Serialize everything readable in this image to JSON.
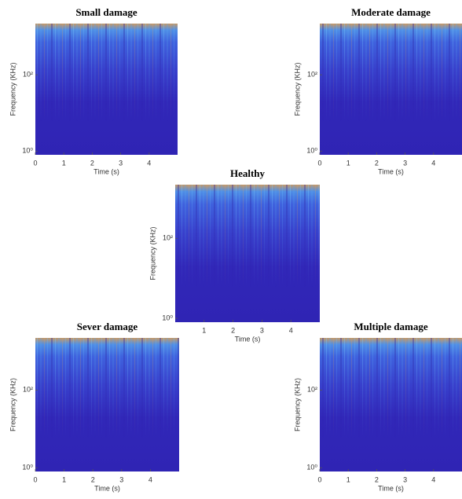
{
  "chart_data": [
    {
      "type": "heatmap",
      "title": "Small damage",
      "xlabel": "Time (s)",
      "ylabel": "Frequency (KHz)",
      "xlim": [
        0,
        5
      ],
      "xticks": [
        0,
        1,
        2,
        3,
        4
      ],
      "ylim": [
        0.8,
        2200
      ],
      "log_y": true,
      "yticks": [
        {
          "value": 1,
          "label": "10⁰"
        },
        {
          "value": 100,
          "label": "10²"
        }
      ]
    },
    {
      "type": "heatmap",
      "title": "Moderate damage",
      "xlabel": "Time (s)",
      "ylabel": "Frequency (KHz)",
      "xlim": [
        0,
        5
      ],
      "xticks": [
        0,
        1,
        2,
        3,
        4
      ],
      "ylim": [
        0.8,
        2200
      ],
      "log_y": true,
      "yticks": [
        {
          "value": 1,
          "label": "10⁰"
        },
        {
          "value": 100,
          "label": "10²"
        }
      ]
    },
    {
      "type": "heatmap",
      "title": "Healthy",
      "xlabel": "Time (s)",
      "ylabel": "Frequency (KHz)",
      "xlim": [
        0,
        5
      ],
      "xticks": [
        1,
        2,
        3,
        4
      ],
      "ylim": [
        0.8,
        2200
      ],
      "log_y": true,
      "yticks": [
        {
          "value": 1,
          "label": "10⁰"
        },
        {
          "value": 100,
          "label": "10²"
        }
      ]
    },
    {
      "type": "heatmap",
      "title": "Sever damage",
      "xlabel": "Time (s)",
      "ylabel": "Frequency (KHz)",
      "xlim": [
        0,
        5
      ],
      "xticks": [
        0,
        1,
        2,
        3,
        4
      ],
      "ylim": [
        0.8,
        2200
      ],
      "log_y": true,
      "yticks": [
        {
          "value": 1,
          "label": "10⁰"
        },
        {
          "value": 100,
          "label": "10²"
        }
      ]
    },
    {
      "type": "heatmap",
      "title": "Multiple damage",
      "xlabel": "Time (s)",
      "ylabel": "Frequency (KHz)",
      "xlim": [
        0,
        5
      ],
      "xticks": [
        0,
        1,
        2,
        3,
        4
      ],
      "ylim": [
        0.8,
        2200
      ],
      "log_y": true,
      "yticks": [
        {
          "value": 1,
          "label": "10⁰"
        },
        {
          "value": 100,
          "label": "10²"
        }
      ]
    }
  ]
}
